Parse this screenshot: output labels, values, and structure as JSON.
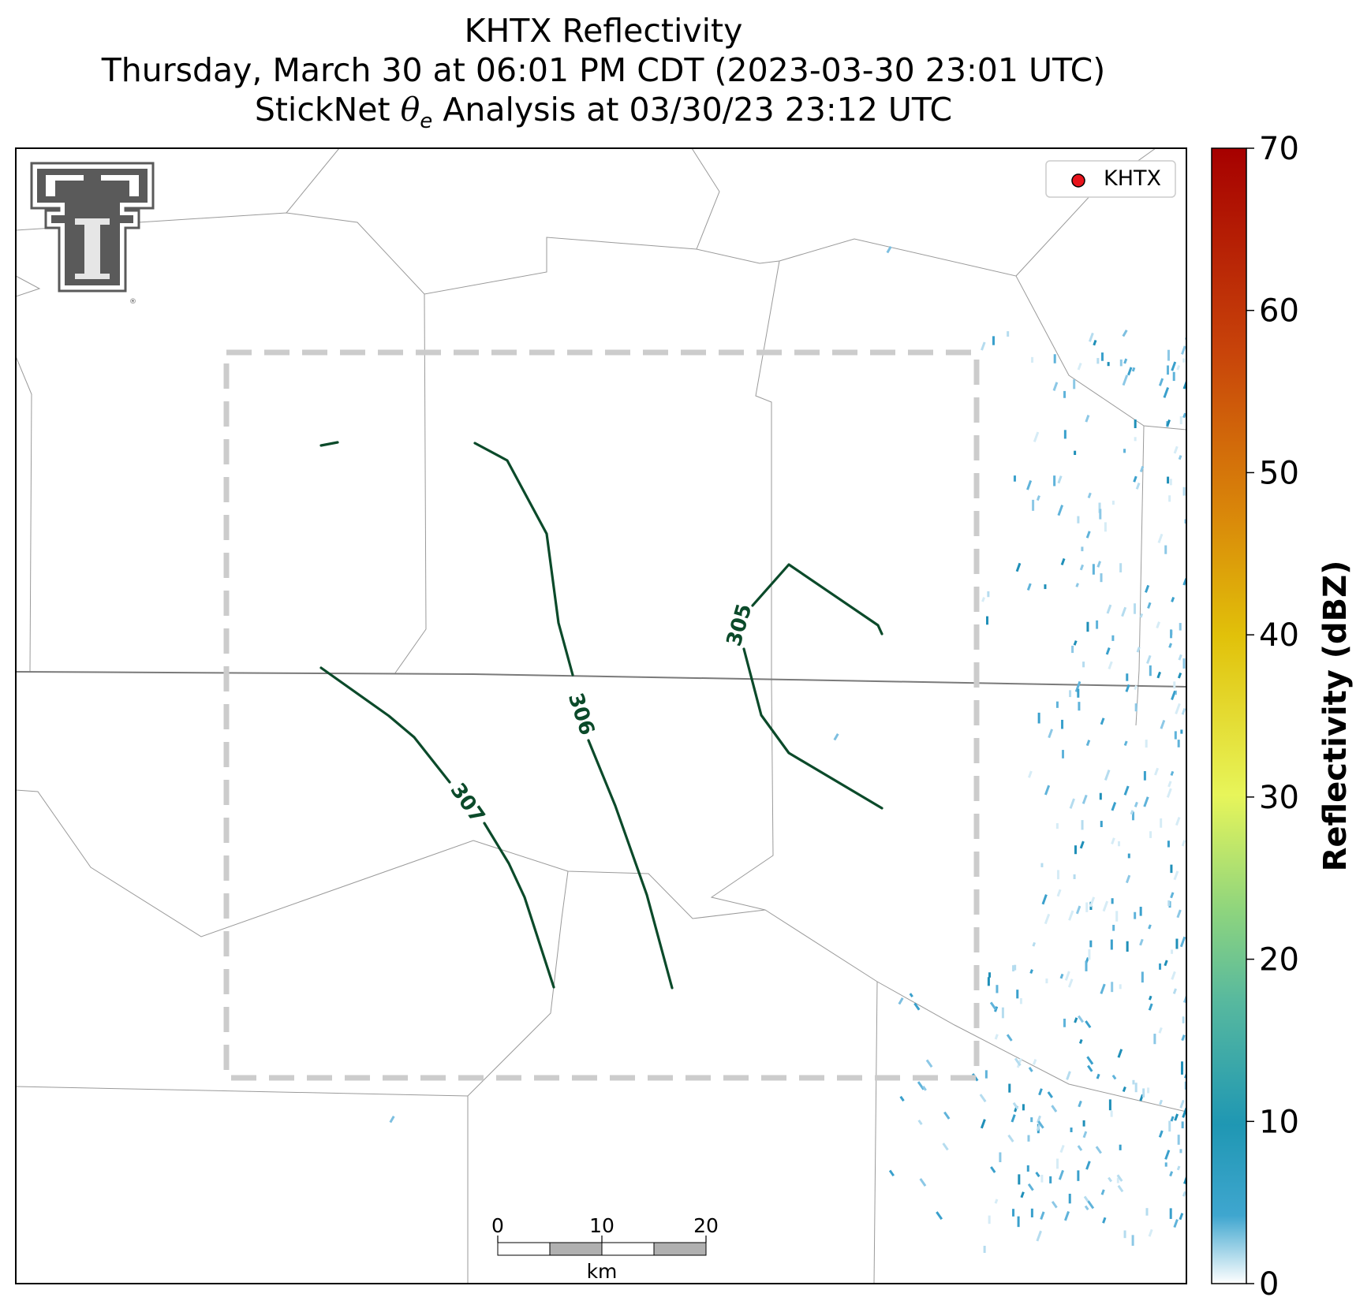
{
  "title": {
    "line1": "KHTX Reflectivity",
    "line2": "Thursday, March 30 at 06:01 PM CDT (2023-03-30 23:01 UTC)",
    "line3_prefix": "StickNet ",
    "line3_symbol": "θ",
    "line3_subscript": "e",
    "line3_suffix": " Analysis at 03/30/23 23:12 UTC"
  },
  "legend": {
    "label": "KHTX",
    "marker_color": "#e8141c"
  },
  "contours": [
    {
      "label": "305",
      "color": "#0b4a2a"
    },
    {
      "label": "306",
      "color": "#0b4a2a"
    },
    {
      "label": "307",
      "color": "#0b4a2a"
    }
  ],
  "scalebar": {
    "ticks": [
      "0",
      "10",
      "20"
    ],
    "unit": "km"
  },
  "colorbar": {
    "label": "Reflectivity (dBZ)",
    "ticks": [
      "0",
      "10",
      "20",
      "30",
      "40",
      "50",
      "60",
      "70"
    ],
    "range": [
      0,
      70
    ],
    "stops": [
      "#ffffff",
      "#3fa6cf",
      "#1f97b3",
      "#58b99e",
      "#8fd57d",
      "#e7f55a",
      "#e1c10a",
      "#d9860a",
      "#c8440a",
      "#a60000"
    ]
  },
  "colors": {
    "boundary": "#9a9a9a",
    "state_line": "#7a7a7a",
    "analysis_box": "#cccccc",
    "logo": "#5a5a5a"
  }
}
